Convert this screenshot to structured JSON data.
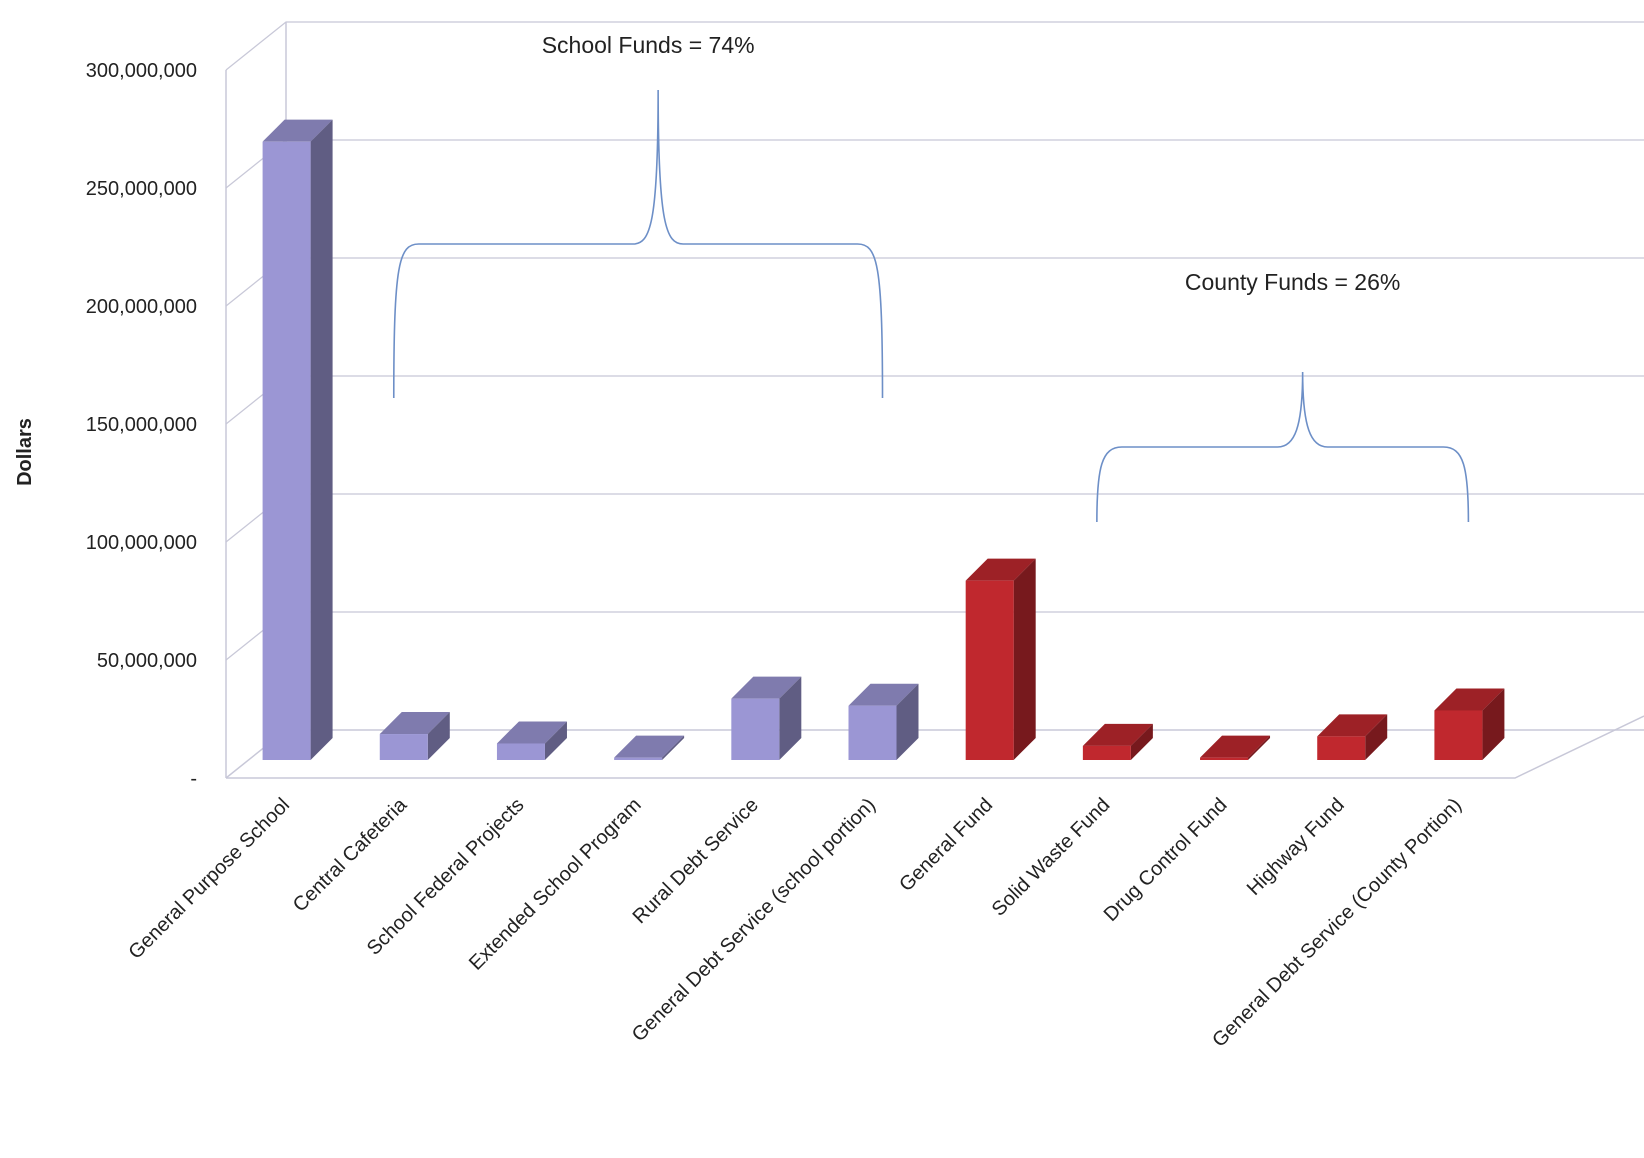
{
  "chart_data": {
    "type": "bar",
    "categories": [
      "General Purpose School",
      "Central Cafeteria",
      "School Federal Projects",
      "Extended School Program",
      "Rural Debt Service",
      "General Debt Service (school portion)",
      "General Fund",
      "Solid Waste Fund",
      "Drug Control Fund",
      "Highway Fund",
      "General Debt Service (County Portion)"
    ],
    "values": [
      262000000,
      11000000,
      7000000,
      1000000,
      26000000,
      23000000,
      76000000,
      6000000,
      1000000,
      10000000,
      21000000
    ],
    "groups": [
      "school",
      "school",
      "school",
      "school",
      "school",
      "school",
      "county",
      "county",
      "county",
      "county",
      "county"
    ],
    "ylabel": "Dollars",
    "ylim": [
      0,
      300000000
    ],
    "yticks": [
      {
        "value": 0,
        "label": "-"
      },
      {
        "value": 50000000,
        "label": "50,000,000"
      },
      {
        "value": 100000000,
        "label": "100,000,000"
      },
      {
        "value": 150000000,
        "label": "150,000,000"
      },
      {
        "value": 200000000,
        "label": "200,000,000"
      },
      {
        "value": 250000000,
        "label": "250,000,000"
      },
      {
        "value": 300000000,
        "label": "300,000,000"
      }
    ],
    "grid": true,
    "style": "3d",
    "colors": {
      "school": "#9b96d4",
      "county": "#c0282e"
    },
    "annotations": [
      {
        "text": "School Funds = 74%",
        "from": 1,
        "to": 5
      },
      {
        "text": "County Funds =  26%",
        "from": 7,
        "to": 10
      }
    ]
  }
}
